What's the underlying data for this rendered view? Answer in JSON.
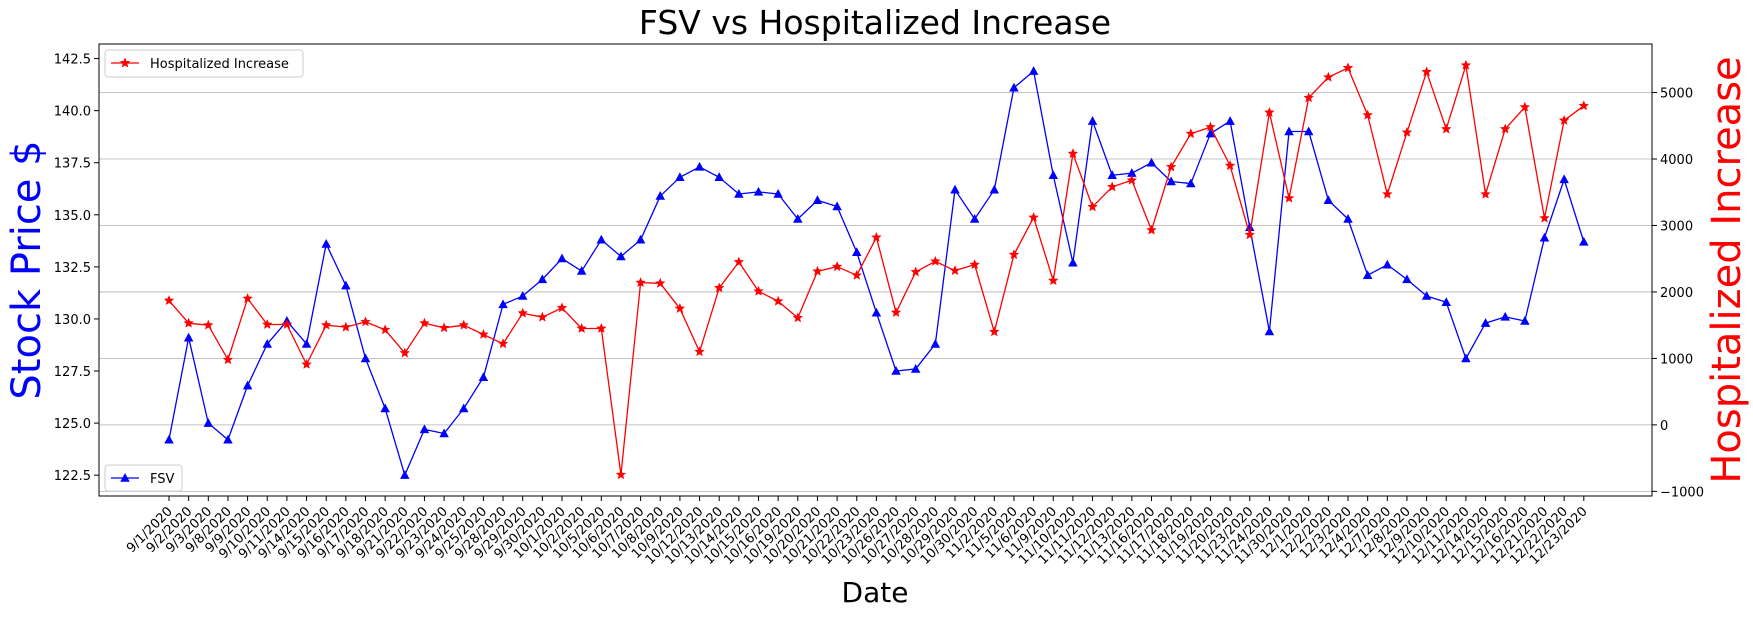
{
  "chart_data": {
    "type": "line",
    "title": "FSV vs Hospitalized Increase",
    "xlabel": "Date",
    "ylabel_left": "Stock Price $",
    "ylabel_right": "Hospitalized Increase",
    "ylim_left": [
      121.5,
      143.2
    ],
    "ylim_right": [
      -1070,
      5730
    ],
    "yticks_left": [
      "122.5",
      "125.0",
      "127.5",
      "130.0",
      "132.5",
      "135.0",
      "137.5",
      "140.0",
      "142.5"
    ],
    "yticks_right": [
      "−1000",
      "0",
      "1000",
      "2000",
      "3000",
      "4000",
      "5000"
    ],
    "grid": "horizontal lines on right axis",
    "categories": [
      "9/1/2020",
      "9/2/2020",
      "9/3/2020",
      "9/8/2020",
      "9/9/2020",
      "9/10/2020",
      "9/11/2020",
      "9/14/2020",
      "9/15/2020",
      "9/16/2020",
      "9/17/2020",
      "9/18/2020",
      "9/21/2020",
      "9/22/2020",
      "9/23/2020",
      "9/24/2020",
      "9/25/2020",
      "9/28/2020",
      "9/29/2020",
      "9/30/2020",
      "10/1/2020",
      "10/2/2020",
      "10/5/2020",
      "10/6/2020",
      "10/7/2020",
      "10/8/2020",
      "10/9/2020",
      "10/12/2020",
      "10/13/2020",
      "10/14/2020",
      "10/15/2020",
      "10/16/2020",
      "10/19/2020",
      "10/20/2020",
      "10/21/2020",
      "10/22/2020",
      "10/23/2020",
      "10/26/2020",
      "10/27/2020",
      "10/28/2020",
      "10/29/2020",
      "10/30/2020",
      "11/2/2020",
      "11/5/2020",
      "11/6/2020",
      "11/9/2020",
      "11/10/2020",
      "11/11/2020",
      "11/12/2020",
      "11/13/2020",
      "11/16/2020",
      "11/17/2020",
      "11/18/2020",
      "11/19/2020",
      "11/20/2020",
      "11/23/2020",
      "11/24/2020",
      "11/30/2020",
      "12/1/2020",
      "12/2/2020",
      "12/3/2020",
      "12/4/2020",
      "12/7/2020",
      "12/8/2020",
      "12/9/2020",
      "12/10/2020",
      "12/11/2020",
      "12/14/2020",
      "12/15/2020",
      "12/16/2020",
      "12/21/2020",
      "12/22/2020",
      "12/23/2020"
    ],
    "series": [
      {
        "name": "FSV",
        "axis": "left",
        "color": "#0000ff",
        "marker": "triangle",
        "legend": "lower-left",
        "values": [
          124.2,
          129.1,
          125.0,
          124.2,
          126.8,
          128.8,
          129.9,
          128.8,
          133.6,
          131.6,
          128.1,
          125.7,
          122.5,
          124.7,
          124.5,
          125.7,
          127.2,
          130.7,
          131.1,
          131.9,
          132.9,
          132.3,
          133.8,
          133.0,
          133.8,
          135.9,
          136.8,
          137.3,
          136.8,
          136.0,
          136.1,
          136.0,
          134.8,
          135.7,
          135.4,
          133.2,
          130.3,
          127.5,
          127.6,
          128.8,
          136.2,
          134.8,
          136.2,
          141.1,
          141.9,
          136.9,
          132.7,
          139.5,
          136.9,
          137.0,
          137.5,
          136.6,
          136.5,
          138.9,
          139.5,
          134.4,
          129.4,
          139.0,
          139.0,
          135.7,
          134.8,
          132.1,
          132.6,
          131.9,
          131.1,
          130.8,
          128.1,
          129.8,
          130.1,
          129.9,
          133.9,
          136.7,
          133.7
        ]
      },
      {
        "name": "Hospitalized Increase",
        "axis": "right",
        "color": "#ff0000",
        "marker": "star",
        "legend": "upper-left",
        "values": [
          1870,
          1530,
          1500,
          980,
          1900,
          1510,
          1510,
          910,
          1500,
          1470,
          1550,
          1430,
          1080,
          1530,
          1460,
          1500,
          1360,
          1220,
          1680,
          1620,
          1760,
          1450,
          1450,
          -750,
          2140,
          2130,
          1750,
          1100,
          2060,
          2450,
          2010,
          1860,
          1610,
          2310,
          2380,
          2250,
          2820,
          1690,
          2300,
          2460,
          2320,
          2410,
          1400,
          2560,
          3120,
          2170,
          4080,
          3280,
          3580,
          3680,
          2930,
          3880,
          4380,
          4480,
          3900,
          2860,
          4700,
          3410,
          4920,
          5230,
          5370,
          4660,
          3470,
          4400,
          5310,
          4450,
          5410,
          3470,
          4450,
          4780,
          3110,
          4580,
          4800
        ]
      }
    ]
  }
}
